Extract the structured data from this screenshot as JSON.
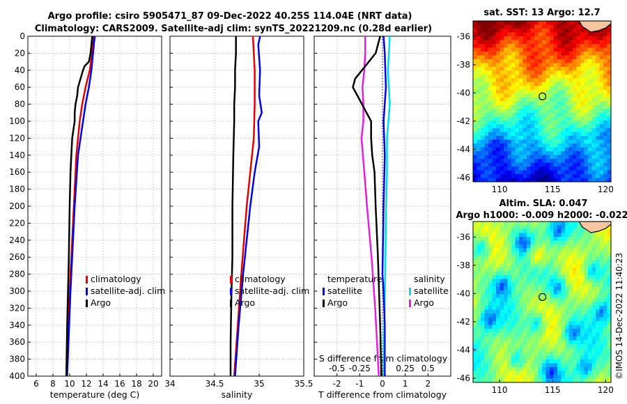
{
  "title_line1": "Argo profile: csiro 5905471_87 09-Dec-2022 40.25S 114.04E (NRT data)",
  "title_line2": "Climatology: CARS2009. Satellite-adj clim: synTS_20221209.nc (0.28d earlier)",
  "footer": "©IMOS 14-Dec-2022 11:40:23",
  "colors": {
    "climatology": "#e00000",
    "satellite": "#0000e0",
    "argo": "#000000",
    "sal_sat": "#00d8f0",
    "sal_argo": "#e020e0",
    "grid": "#bdbdbd"
  },
  "chart_data": [
    {
      "type": "line",
      "panel": "temperature",
      "xlabel": "temperature (deg C)",
      "ylabel": "",
      "xlim": [
        5,
        21
      ],
      "ylim": [
        400,
        0
      ],
      "xticks": [
        "6",
        "8",
        "10",
        "12",
        "14",
        "16",
        "18",
        "20"
      ],
      "xtick_values": [
        6,
        8,
        10,
        12,
        14,
        16,
        18,
        20
      ],
      "yticks": [
        "0",
        "20",
        "40",
        "60",
        "80",
        "100",
        "120",
        "140",
        "160",
        "180",
        "200",
        "220",
        "240",
        "260",
        "280",
        "300",
        "320",
        "340",
        "360",
        "380",
        "400"
      ],
      "legend": [
        "climatology",
        "satellite-adj. clim",
        "Argo"
      ],
      "series": [
        {
          "name": "climatology",
          "depth": [
            0,
            20,
            40,
            60,
            80,
            100,
            140,
            200,
            300,
            400
          ],
          "values": [
            12.9,
            12.7,
            12.4,
            11.9,
            11.5,
            11.2,
            10.8,
            10.5,
            10.0,
            9.6
          ]
        },
        {
          "name": "satellite-adj. clim",
          "depth": [
            0,
            20,
            40,
            60,
            80,
            100,
            140,
            200,
            300,
            400
          ],
          "values": [
            13.0,
            12.8,
            12.6,
            12.3,
            11.9,
            11.6,
            11.0,
            10.6,
            10.1,
            9.7
          ]
        },
        {
          "name": "Argo",
          "depth": [
            0,
            10,
            20,
            30,
            35,
            40,
            50,
            60,
            70,
            80,
            90,
            100,
            120,
            140,
            160,
            200,
            260,
            300,
            340,
            400
          ],
          "values": [
            12.7,
            12.6,
            12.5,
            12.3,
            11.8,
            11.6,
            11.3,
            11.0,
            10.9,
            10.7,
            10.6,
            10.6,
            10.3,
            10.2,
            10.1,
            10.0,
            9.9,
            9.8,
            9.7,
            9.6
          ]
        }
      ]
    },
    {
      "type": "line",
      "panel": "salinity",
      "xlabel": "salinity",
      "ylabel": "",
      "xlim": [
        34,
        35.5
      ],
      "ylim": [
        400,
        0
      ],
      "xticks": [
        "34",
        "34.5",
        "35",
        "35.5"
      ],
      "xtick_values": [
        34,
        34.5,
        35,
        35.5
      ],
      "legend": [
        "climatology",
        "satellite-adj. clim",
        "Argo"
      ],
      "series": [
        {
          "name": "climatology",
          "depth": [
            0,
            40,
            80,
            120,
            160,
            200,
            240,
            280,
            340,
            400
          ],
          "values": [
            34.93,
            34.95,
            34.95,
            34.94,
            34.9,
            34.86,
            34.83,
            34.8,
            34.76,
            34.72
          ]
        },
        {
          "name": "satellite-adj. clim",
          "depth": [
            0,
            10,
            40,
            70,
            90,
            100,
            130,
            160,
            200,
            280,
            340,
            400
          ],
          "values": [
            35.01,
            34.99,
            35.01,
            35.0,
            35.03,
            34.99,
            35.0,
            34.95,
            34.9,
            34.82,
            34.77,
            34.73
          ]
        },
        {
          "name": "Argo",
          "depth": [
            0,
            20,
            40,
            60,
            80,
            100,
            140,
            200,
            260,
            300,
            360,
            400
          ],
          "values": [
            34.74,
            34.74,
            34.73,
            34.73,
            34.72,
            34.72,
            34.71,
            34.7,
            34.7,
            34.69,
            34.68,
            34.68
          ]
        }
      ]
    },
    {
      "type": "line",
      "panel": "difference",
      "xlabel": "T difference from climatology",
      "ylabel": "",
      "x2label": "S difference from climatology",
      "xlim": [
        -3,
        3
      ],
      "ylim": [
        400,
        0
      ],
      "xticks": [
        "-2",
        "-1",
        "0",
        "1",
        "2"
      ],
      "xtick_values": [
        -2,
        -1,
        0,
        1,
        2
      ],
      "x2ticks": [
        "-0.5",
        "-0.25",
        "0",
        "0.25",
        "0.5"
      ],
      "x2tick_values": [
        -0.5,
        -0.25,
        0,
        0.25,
        0.5
      ],
      "legend_left_title": "temperature",
      "legend_right_title": "salinity",
      "legend_left": [
        "satellite",
        "Argo"
      ],
      "legend_right": [
        "satellite",
        "Argo"
      ],
      "series": [
        {
          "name": "T satellite",
          "depth": [
            0,
            20,
            60,
            100,
            140,
            200,
            280,
            300,
            340,
            400
          ],
          "values": [
            0.05,
            0.1,
            0.15,
            0.05,
            0.1,
            0.05,
            0.0,
            0.05,
            0.1,
            0.1
          ]
        },
        {
          "name": "T Argo",
          "depth": [
            0,
            10,
            20,
            30,
            40,
            50,
            60,
            70,
            80,
            90,
            100,
            120,
            140,
            160,
            200,
            260,
            300,
            340,
            400
          ],
          "values": [
            -0.1,
            -0.2,
            -0.3,
            -0.6,
            -0.9,
            -1.2,
            -1.3,
            -1.1,
            -0.9,
            -0.7,
            -0.5,
            -0.5,
            -0.45,
            -0.35,
            -0.3,
            -0.2,
            -0.15,
            -0.1,
            -0.05
          ]
        },
        {
          "name": "S satellite",
          "depth": [
            0,
            40,
            80,
            120,
            160,
            200,
            280,
            340,
            400
          ],
          "values": [
            0.08,
            0.06,
            0.08,
            0.05,
            0.05,
            0.04,
            0.03,
            0.02,
            0.01
          ]
        },
        {
          "name": "S Argo",
          "depth": [
            0,
            20,
            40,
            60,
            80,
            100,
            120,
            160,
            200,
            260,
            320,
            400
          ],
          "values": [
            -0.19,
            -0.19,
            -0.2,
            -0.22,
            -0.21,
            -0.21,
            -0.23,
            -0.2,
            -0.17,
            -0.12,
            -0.08,
            -0.04
          ]
        }
      ]
    },
    {
      "type": "heatmap",
      "panel": "sst_map",
      "title": "sat. SST: 13 Argo: 12.7",
      "xticks": [
        "110",
        "115",
        "120"
      ],
      "xtick_values": [
        110,
        115,
        120
      ],
      "yticks": [
        "-36",
        "-38",
        "-40",
        "-42",
        "-44",
        "-46"
      ],
      "ytick_values": [
        -36,
        -38,
        -40,
        -42,
        -44,
        -46
      ],
      "xlim": [
        107.5,
        120.5
      ],
      "ylim": [
        -46.3,
        -34.9
      ],
      "marker": {
        "lon": 114.04,
        "lat": -40.25
      }
    },
    {
      "type": "heatmap",
      "panel": "sla_map",
      "title_line1": "Altim. SLA: 0.047",
      "title_line2": "Argo h1000: -0.009 h2000: -0.022",
      "xticks": [
        "110",
        "115",
        "120"
      ],
      "xtick_values": [
        110,
        115,
        120
      ],
      "yticks": [
        "-36",
        "-38",
        "-40",
        "-42",
        "-44",
        "-46"
      ],
      "ytick_values": [
        -36,
        -38,
        -40,
        -42,
        -44,
        -46
      ],
      "xlim": [
        107.5,
        120.5
      ],
      "ylim": [
        -46.3,
        -34.9
      ],
      "marker": {
        "lon": 114.04,
        "lat": -40.25
      }
    }
  ]
}
